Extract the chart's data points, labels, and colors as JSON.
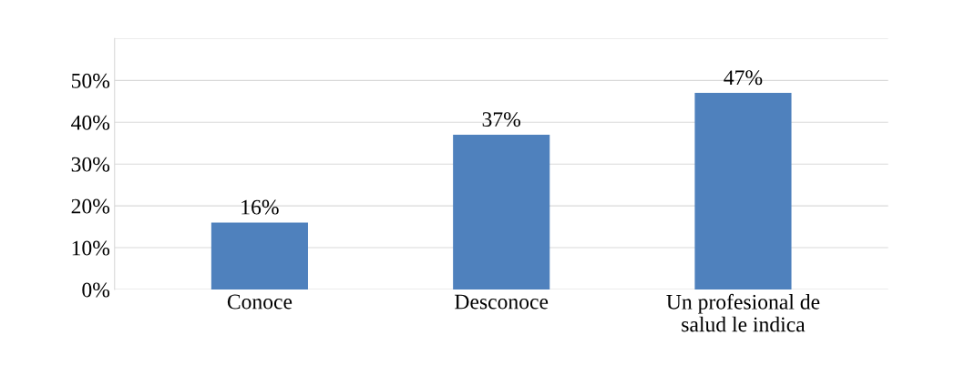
{
  "chart_data": {
    "type": "bar",
    "categories": [
      "Conoce",
      "Desconoce",
      "Un profesional de\nsalud le indica"
    ],
    "values": [
      16,
      37,
      47
    ],
    "value_labels": [
      "16%",
      "37%",
      "47%"
    ],
    "color": "#4f81bd",
    "ylim": [
      0,
      60
    ],
    "yticks": [
      {
        "value": 0,
        "label": "0%"
      },
      {
        "value": 10,
        "label": "10%"
      },
      {
        "value": 20,
        "label": "20%"
      },
      {
        "value": 30,
        "label": "30%"
      },
      {
        "value": 40,
        "label": "40%"
      },
      {
        "value": 50,
        "label": "50%"
      },
      {
        "value": 60,
        "label": null
      }
    ],
    "grid": "y",
    "legend": false
  }
}
